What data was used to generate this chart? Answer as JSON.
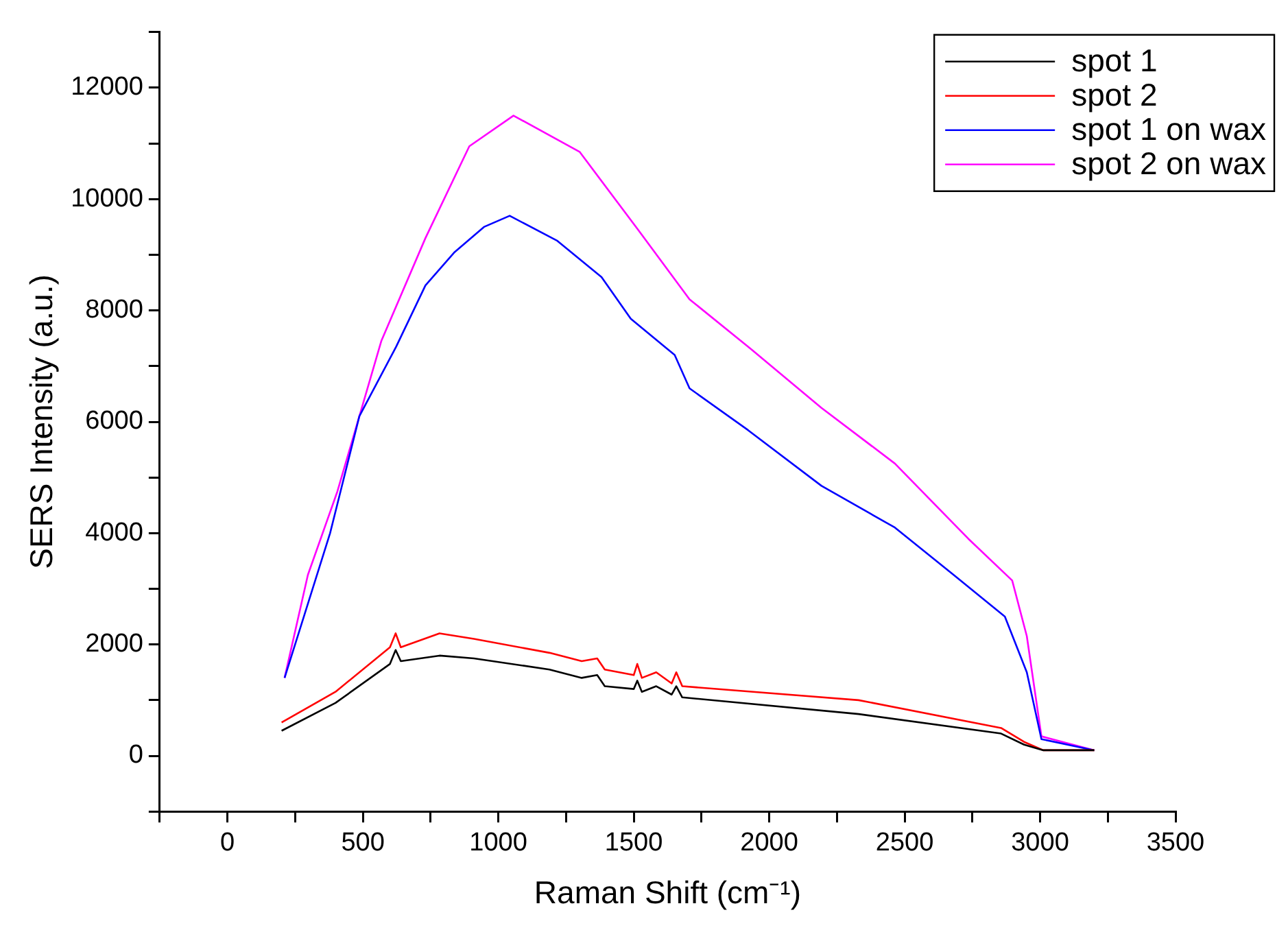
{
  "chart_data": {
    "type": "line",
    "xlabel": "Raman Shift (cm⁻¹)",
    "ylabel": "SERS Intensity (a.u.)",
    "xlim": [
      -250,
      3500
    ],
    "xticks": [
      {
        "value": -250,
        "label": null
      },
      0,
      {
        "value": 250,
        "label": null
      },
      500,
      {
        "value": 750,
        "label": null
      },
      1000,
      {
        "value": 1250,
        "label": null
      },
      1500,
      {
        "value": 1750,
        "label": null
      },
      2000,
      {
        "value": 2250,
        "label": null
      },
      2500,
      {
        "value": 2750,
        "label": null
      },
      3000,
      {
        "value": 3250,
        "label": null
      },
      3500
    ],
    "ylim": [
      -1000,
      13000
    ],
    "yticks": [
      {
        "value": -1000,
        "label": null
      },
      0,
      {
        "value": 1000,
        "label": null
      },
      2000,
      {
        "value": 3000,
        "label": null
      },
      4000,
      {
        "value": 5000,
        "label": null
      },
      6000,
      {
        "value": 7000,
        "label": null
      },
      8000,
      {
        "value": 9000,
        "label": null
      },
      10000,
      {
        "value": 11000,
        "label": null
      },
      12000,
      {
        "value": 13000,
        "label": null
      }
    ],
    "grid": false,
    "legend": "top right",
    "marker": "none",
    "line_style": "solid",
    "series": [
      {
        "name": "spot 1",
        "color": "#000000",
        "x": [
          200,
          399,
          600,
          621,
          640,
          783,
          910,
          1189,
          1308,
          1365,
          1393,
          1500,
          1513,
          1530,
          1583,
          1640,
          1657,
          1679,
          2330,
          2856,
          2941,
          3012,
          3200
        ],
        "values": [
          450,
          950,
          1650,
          1900,
          1700,
          1800,
          1750,
          1550,
          1400,
          1450,
          1250,
          1200,
          1350,
          1150,
          1250,
          1100,
          1250,
          1050,
          750,
          400,
          200,
          100,
          100
        ]
      },
      {
        "name": "spot 2",
        "color": "#ff0000",
        "x": [
          200,
          399,
          600,
          621,
          640,
          783,
          910,
          1189,
          1308,
          1365,
          1393,
          1500,
          1513,
          1530,
          1583,
          1640,
          1657,
          1679,
          2330,
          2856,
          2941,
          3012,
          3200
        ],
        "values": [
          600,
          1150,
          1950,
          2200,
          1950,
          2200,
          2100,
          1850,
          1700,
          1750,
          1550,
          1450,
          1650,
          1400,
          1500,
          1300,
          1500,
          1250,
          1000,
          500,
          250,
          100,
          100
        ]
      },
      {
        "name": "spot 1 on wax",
        "color": "#0000ff",
        "x": [
          211,
          379,
          487,
          623,
          731,
          839,
          947,
          1042,
          1218,
          1381,
          1489,
          1651,
          1706,
          1922,
          2193,
          2464,
          2681,
          2870,
          2951,
          3005,
          3200
        ],
        "values": [
          1400,
          4000,
          6100,
          7350,
          8450,
          9050,
          9500,
          9700,
          9250,
          8600,
          7850,
          7200,
          6600,
          5850,
          4850,
          4100,
          3250,
          2500,
          1500,
          300,
          100
        ]
      },
      {
        "name": "spot 2 on wax",
        "color": "#ff00ff",
        "x": [
          211,
          297,
          406,
          568,
          731,
          893,
          1056,
          1300,
          1516,
          1706,
          1922,
          2193,
          2464,
          2735,
          2897,
          2951,
          3005,
          3200
        ],
        "values": [
          1400,
          3250,
          4750,
          7450,
          9300,
          10950,
          11500,
          10850,
          9450,
          8200,
          7350,
          6250,
          5250,
          3900,
          3150,
          2150,
          350,
          100
        ]
      }
    ]
  }
}
